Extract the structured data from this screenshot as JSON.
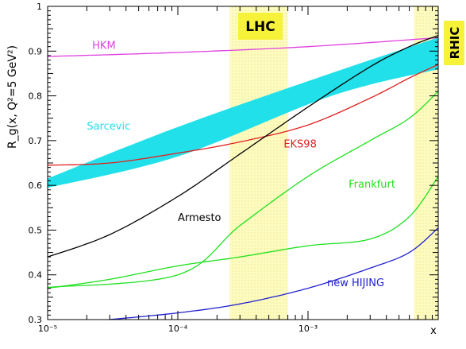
{
  "chart_data": {
    "type": "line",
    "xscale": "log",
    "xlim": [
      1e-05,
      0.01
    ],
    "ylim": [
      0.3,
      1.0
    ],
    "xlabel": "x",
    "ylabel": "R_g(x, Q²=5 GeV²)",
    "x_tick_labels": [
      "10⁻⁵",
      "10⁻⁴",
      "10⁻³"
    ],
    "y_tick_labels": [
      "0.3",
      "0.4",
      "0.5",
      "0.6",
      "0.7",
      "0.8",
      "0.9",
      "1"
    ],
    "regions": [
      {
        "label": "LHC",
        "x_range": [
          0.00025,
          0.0007
        ]
      },
      {
        "label": "RHIC",
        "x_range": [
          0.0065,
          0.01
        ]
      }
    ],
    "band": {
      "name": "Sarcevic",
      "color": "#22e0ea",
      "upper": [
        [
          1e-05,
          0.615
        ],
        [
          0.0001,
          0.73
        ],
        [
          0.0015,
          0.85
        ],
        [
          0.01,
          0.93
        ]
      ],
      "lower": [
        [
          1e-05,
          0.595
        ],
        [
          0.0001,
          0.665
        ],
        [
          0.0015,
          0.8
        ],
        [
          0.01,
          0.86
        ]
      ]
    },
    "series": [
      {
        "name": "HKM",
        "color": "#e040e0",
        "points": [
          [
            1e-05,
            0.888
          ],
          [
            0.0001,
            0.897
          ],
          [
            0.001,
            0.91
          ],
          [
            0.01,
            0.93
          ]
        ]
      },
      {
        "name": "EKS98",
        "color": "#e02020",
        "points": [
          [
            1e-05,
            0.645
          ],
          [
            3e-05,
            0.65
          ],
          [
            0.0001,
            0.672
          ],
          [
            0.0003,
            0.697
          ],
          [
            0.001,
            0.735
          ],
          [
            0.003,
            0.795
          ],
          [
            0.006,
            0.84
          ],
          [
            0.01,
            0.87
          ]
        ]
      },
      {
        "name": "Armesto",
        "color": "#000000",
        "points": [
          [
            1e-05,
            0.44
          ],
          [
            3e-05,
            0.49
          ],
          [
            0.0001,
            0.575
          ],
          [
            0.0003,
            0.67
          ],
          [
            0.001,
            0.775
          ],
          [
            0.003,
            0.865
          ],
          [
            0.006,
            0.91
          ],
          [
            0.01,
            0.935
          ]
        ]
      },
      {
        "name": "Frankfurt",
        "color": "#20e020",
        "points": [
          [
            1e-05,
            0.37
          ],
          [
            3e-05,
            0.39
          ],
          [
            0.0001,
            0.42
          ],
          [
            0.0003,
            0.44
          ],
          [
            0.001,
            0.465
          ],
          [
            0.003,
            0.48
          ],
          [
            0.006,
            0.53
          ],
          [
            0.01,
            0.62
          ]
        ]
      },
      {
        "name": "",
        "color": "#20e020",
        "points": [
          [
            1e-05,
            0.372
          ],
          [
            0.0001,
            0.4
          ],
          [
            0.0003,
            0.51
          ],
          [
            0.001,
            0.62
          ],
          [
            0.003,
            0.7
          ],
          [
            0.006,
            0.75
          ],
          [
            0.01,
            0.81
          ]
        ]
      },
      {
        "name": "new HIJING",
        "color": "#2020d0",
        "points": [
          [
            3e-05,
            0.3
          ],
          [
            0.0001,
            0.315
          ],
          [
            0.0003,
            0.335
          ],
          [
            0.001,
            0.37
          ],
          [
            0.003,
            0.415
          ],
          [
            0.006,
            0.45
          ],
          [
            0.01,
            0.505
          ]
        ]
      }
    ],
    "labels": [
      {
        "text": "HKM",
        "color": "#e040e0",
        "x": 2.2e-05,
        "y": 0.905
      },
      {
        "text": "Sarcevic",
        "color": "#22e0ea",
        "x": 2e-05,
        "y": 0.725
      },
      {
        "text": "EKS98",
        "color": "#e02020",
        "x": 0.00065,
        "y": 0.685
      },
      {
        "text": "Armesto",
        "color": "#000000",
        "x": 0.0001,
        "y": 0.52
      },
      {
        "text": "Frankfurt",
        "color": "#20e020",
        "x": 0.00205,
        "y": 0.595
      },
      {
        "text": "new HIJING",
        "color": "#2020d0",
        "x": 0.0014,
        "y": 0.375
      }
    ],
    "grid": false,
    "legend": "none"
  }
}
